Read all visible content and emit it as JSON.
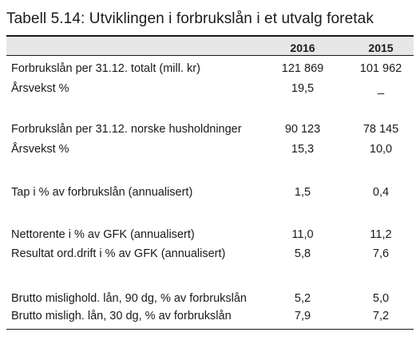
{
  "title": "Tabell 5.14: Utviklingen i forbrukslån i et utvalg foretak",
  "header": {
    "col1": "2016",
    "col2": "2015"
  },
  "rows": [
    {
      "label": "Forbrukslån per 31.12. totalt (mill. kr)",
      "v2016": "121 869",
      "v2015": "101 962"
    },
    {
      "label": "Årsvekst %",
      "v2016": "19,5",
      "v2015": "_"
    },
    {
      "label": "Forbrukslån per 31.12. norske husholdninger",
      "v2016": "90 123",
      "v2015": "78 145"
    },
    {
      "label": "Årsvekst %",
      "v2016": "15,3",
      "v2015": "10,0"
    },
    {
      "label": "Tap i % av forbrukslån (annualisert)",
      "v2016": "1,5",
      "v2015": "0,4"
    },
    {
      "label": "Nettorente i % av GFK (annualisert)",
      "v2016": "11,0",
      "v2015": "11,2"
    },
    {
      "label": "Resultat ord.drift i % av GFK (annualisert)",
      "v2016": "5,8",
      "v2015": "7,6"
    },
    {
      "label": "Brutto mislighold. lån, 90 dg, % av forbrukslån",
      "v2016": "5,2",
      "v2015": "5,0"
    },
    {
      "label": "Brutto misligh. lån, 30 dg, % av forbrukslån",
      "v2016": "7,9",
      "v2015": "7,2"
    }
  ]
}
